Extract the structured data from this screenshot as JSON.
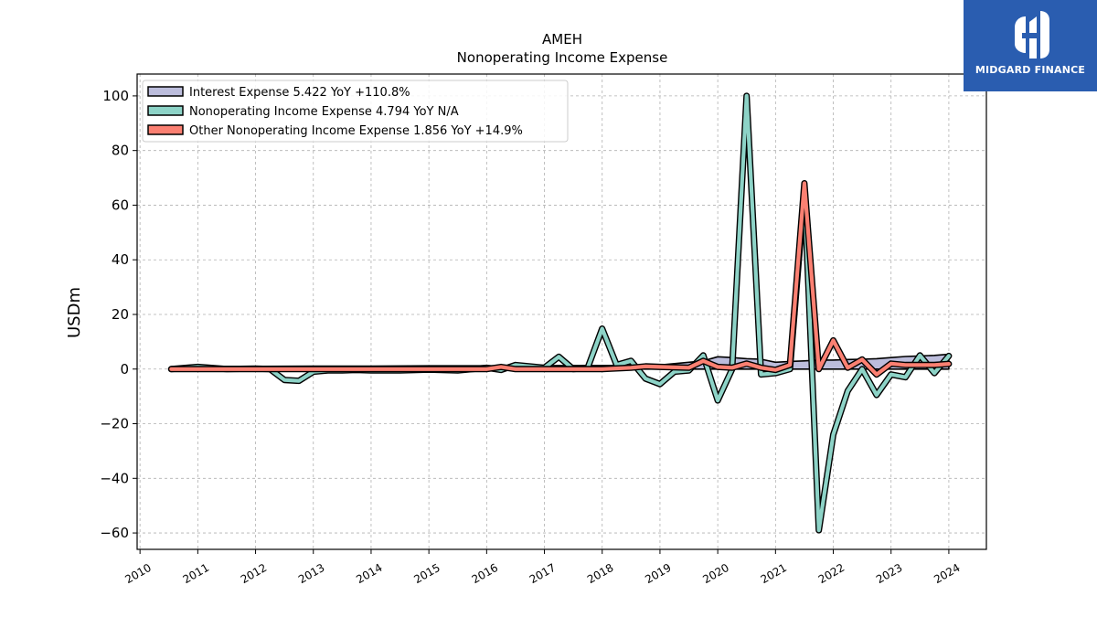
{
  "chart_data": {
    "type": "line",
    "title": "AMEH",
    "subtitle": "Nonoperating Income Expense",
    "ylabel": "USDm",
    "xlabel": "",
    "ylim": [
      -66,
      108
    ],
    "xlim": [
      2009.95,
      2024.65
    ],
    "yticks": [
      -60,
      -40,
      -20,
      0,
      20,
      40,
      60,
      80,
      100
    ],
    "yticklabels": [
      "−60",
      "−40",
      "−20",
      "0",
      "20",
      "40",
      "60",
      "80",
      "100"
    ],
    "xticks": [
      2010,
      2011,
      2012,
      2013,
      2014,
      2015,
      2016,
      2017,
      2018,
      2019,
      2020,
      2021,
      2022,
      2023,
      2024
    ],
    "xticklabels": [
      "2010",
      "2011",
      "2012",
      "2013",
      "2014",
      "2015",
      "2016",
      "2017",
      "2018",
      "2019",
      "2020",
      "2021",
      "2022",
      "2023",
      "2024"
    ],
    "grid": true,
    "legend_position": "top-left",
    "series": [
      {
        "name": "Interest Expense",
        "legend": "Interest Expense  5.422 YoY +110.8%",
        "color": "#bcbddc",
        "style": "area",
        "x": [
          2010.54,
          2011.0,
          2012.0,
          2013.0,
          2014.0,
          2015.0,
          2016.0,
          2017.0,
          2018.0,
          2018.75,
          2019.0,
          2019.75,
          2020.0,
          2020.25,
          2020.5,
          2020.75,
          2021.0,
          2021.25,
          2021.5,
          2021.75,
          2022.0,
          2022.25,
          2022.5,
          2022.75,
          2023.0,
          2023.25,
          2023.5,
          2023.75,
          2024.0
        ],
        "y": [
          0.8,
          1.0,
          1.0,
          1.1,
          1.1,
          1.2,
          1.2,
          1.3,
          1.3,
          1.4,
          1.5,
          3.0,
          4.5,
          4.2,
          3.8,
          3.6,
          2.5,
          2.8,
          3.0,
          3.3,
          3.3,
          3.5,
          3.6,
          3.8,
          4.2,
          4.6,
          4.8,
          5.0,
          5.4
        ]
      },
      {
        "name": "Nonoperating Income Expense",
        "legend": "Nonoperating Income Expense  4.794 YoY N/A",
        "color": "#8dd3c7",
        "style": "line",
        "x": [
          2010.54,
          2011.0,
          2011.5,
          2012.0,
          2012.25,
          2012.5,
          2012.75,
          2013.0,
          2013.25,
          2013.5,
          2013.75,
          2014.0,
          2014.5,
          2015.0,
          2015.5,
          2016.0,
          2016.25,
          2016.5,
          2017.0,
          2017.25,
          2017.5,
          2017.75,
          2018.0,
          2018.25,
          2018.5,
          2018.75,
          2019.0,
          2019.25,
          2019.5,
          2019.75,
          2020.0,
          2020.25,
          2020.5,
          2020.75,
          2021.0,
          2021.25,
          2021.5,
          2021.75,
          2022.0,
          2022.25,
          2022.5,
          2022.75,
          2023.0,
          2023.25,
          2023.5,
          2023.75,
          2024.0
        ],
        "y": [
          0.0,
          0.8,
          0.0,
          0.2,
          0.0,
          -4.0,
          -4.3,
          -1.0,
          -0.5,
          -0.5,
          -0.3,
          -0.5,
          -0.5,
          -0.2,
          -0.5,
          0.5,
          -0.3,
          1.5,
          0.5,
          4.5,
          0.0,
          0.5,
          14.8,
          1.5,
          3.0,
          -3.5,
          -5.5,
          -1.0,
          -0.5,
          5.0,
          -11.5,
          0.0,
          100.0,
          -2.0,
          -1.5,
          0.0,
          65.0,
          -59.0,
          -24.0,
          -8.0,
          0.0,
          -9.5,
          -2.0,
          -3.0,
          5.0,
          -1.5,
          4.8
        ]
      },
      {
        "name": "Other Nonoperating Income Expense",
        "legend": "Other Nonoperating Income Expense  1.856 YoY +14.9%",
        "color": "#fb8072",
        "style": "line",
        "x": [
          2010.54,
          2011.0,
          2012.0,
          2013.0,
          2014.0,
          2015.0,
          2016.0,
          2016.25,
          2016.5,
          2017.0,
          2017.5,
          2018.0,
          2018.5,
          2018.75,
          2019.0,
          2019.5,
          2019.75,
          2020.0,
          2020.25,
          2020.5,
          2020.75,
          2021.0,
          2021.25,
          2021.5,
          2021.75,
          2022.0,
          2022.25,
          2022.5,
          2022.75,
          2023.0,
          2023.25,
          2023.5,
          2023.75,
          2024.0
        ],
        "y": [
          0.0,
          0.0,
          0.0,
          0.0,
          0.0,
          0.0,
          0.0,
          0.8,
          0.0,
          0.0,
          0.0,
          0.0,
          0.5,
          1.0,
          0.8,
          0.5,
          3.0,
          0.8,
          0.5,
          2.0,
          0.5,
          -0.3,
          1.5,
          68.0,
          0.0,
          10.5,
          0.5,
          3.5,
          -2.0,
          2.0,
          1.5,
          1.5,
          1.5,
          1.9
        ]
      }
    ]
  },
  "logo": {
    "text": "MIDGARD FINANCE",
    "color": "#2a5db0"
  }
}
